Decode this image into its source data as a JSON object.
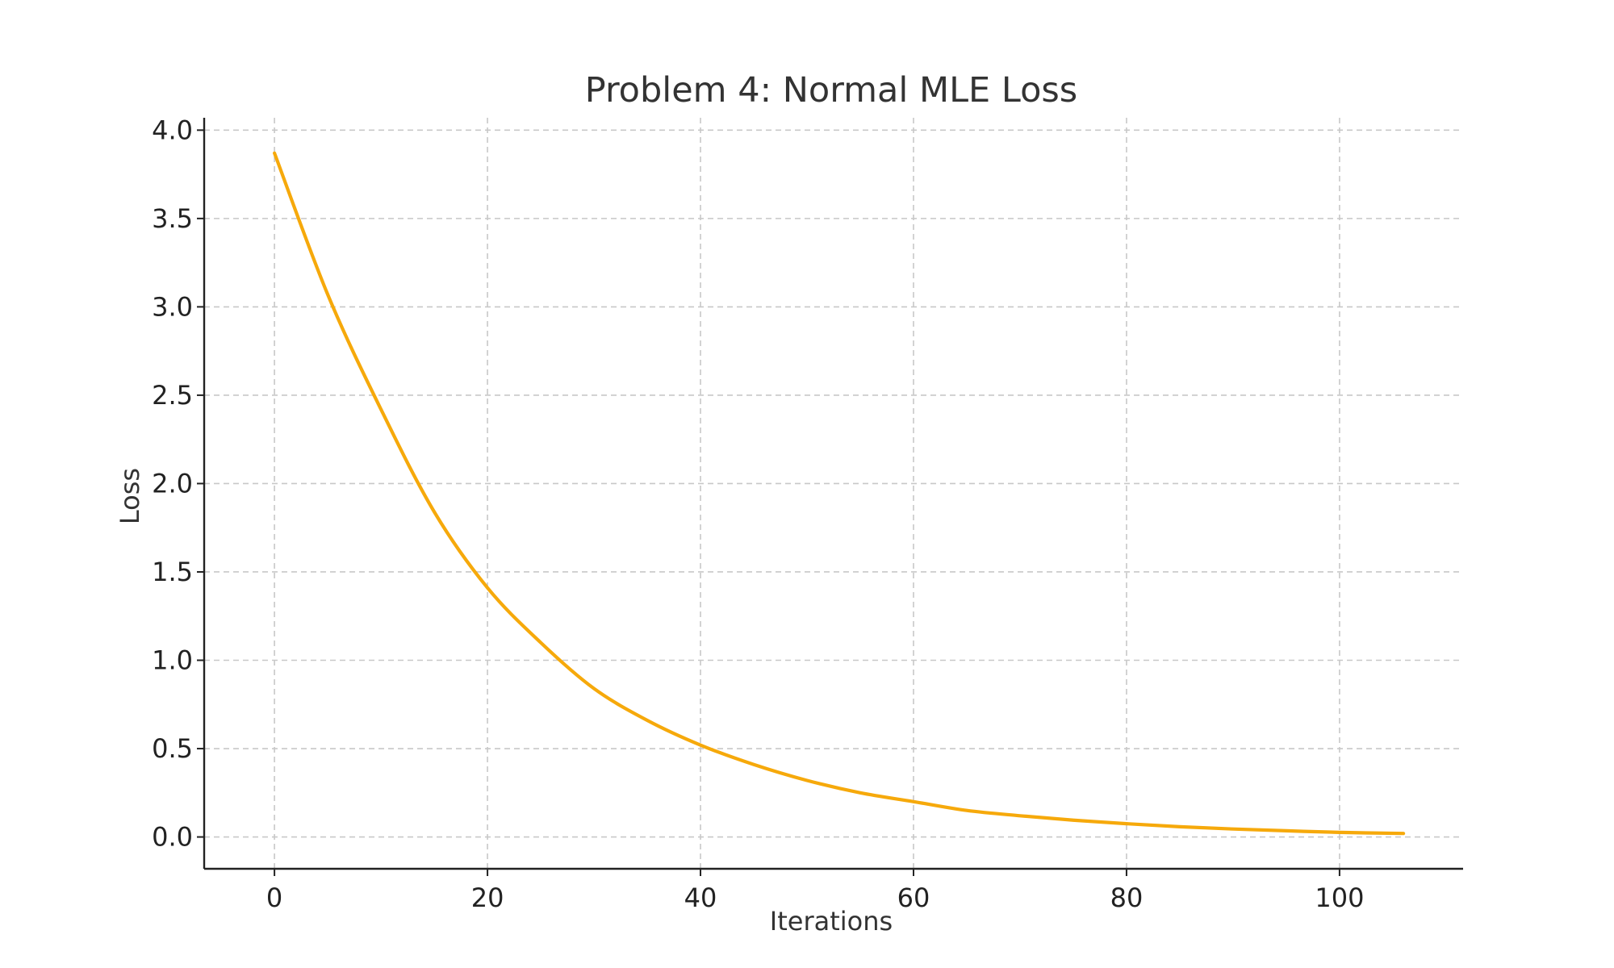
{
  "chart_data": {
    "type": "line",
    "title": "Problem 4: Normal MLE Loss",
    "xlabel": "Iterations",
    "ylabel": "Loss",
    "xlim": [
      -6.6,
      111.6
    ],
    "ylim": [
      -0.18,
      4.07
    ],
    "xticks": [
      0,
      20,
      40,
      60,
      80,
      100
    ],
    "yticks": [
      0.0,
      0.5,
      1.0,
      1.5,
      2.0,
      2.5,
      3.0,
      3.5,
      4.0
    ],
    "xtick_labels": [
      "0",
      "20",
      "40",
      "60",
      "80",
      "100"
    ],
    "ytick_labels": [
      "0.0",
      "0.5",
      "1.0",
      "1.5",
      "2.0",
      "2.5",
      "3.0",
      "3.5",
      "4.0"
    ],
    "grid": true,
    "series": [
      {
        "color": "#f6a90b",
        "x": [
          0,
          5,
          10,
          15,
          20,
          25,
          30,
          35,
          40,
          45,
          50,
          55,
          60,
          65,
          70,
          75,
          80,
          85,
          90,
          95,
          100,
          106
        ],
        "y": [
          3.87,
          3.07,
          2.42,
          1.84,
          1.41,
          1.1,
          0.84,
          0.66,
          0.52,
          0.41,
          0.32,
          0.25,
          0.2,
          0.15,
          0.12,
          0.095,
          0.075,
          0.058,
          0.045,
          0.035,
          0.026,
          0.02
        ]
      }
    ]
  }
}
